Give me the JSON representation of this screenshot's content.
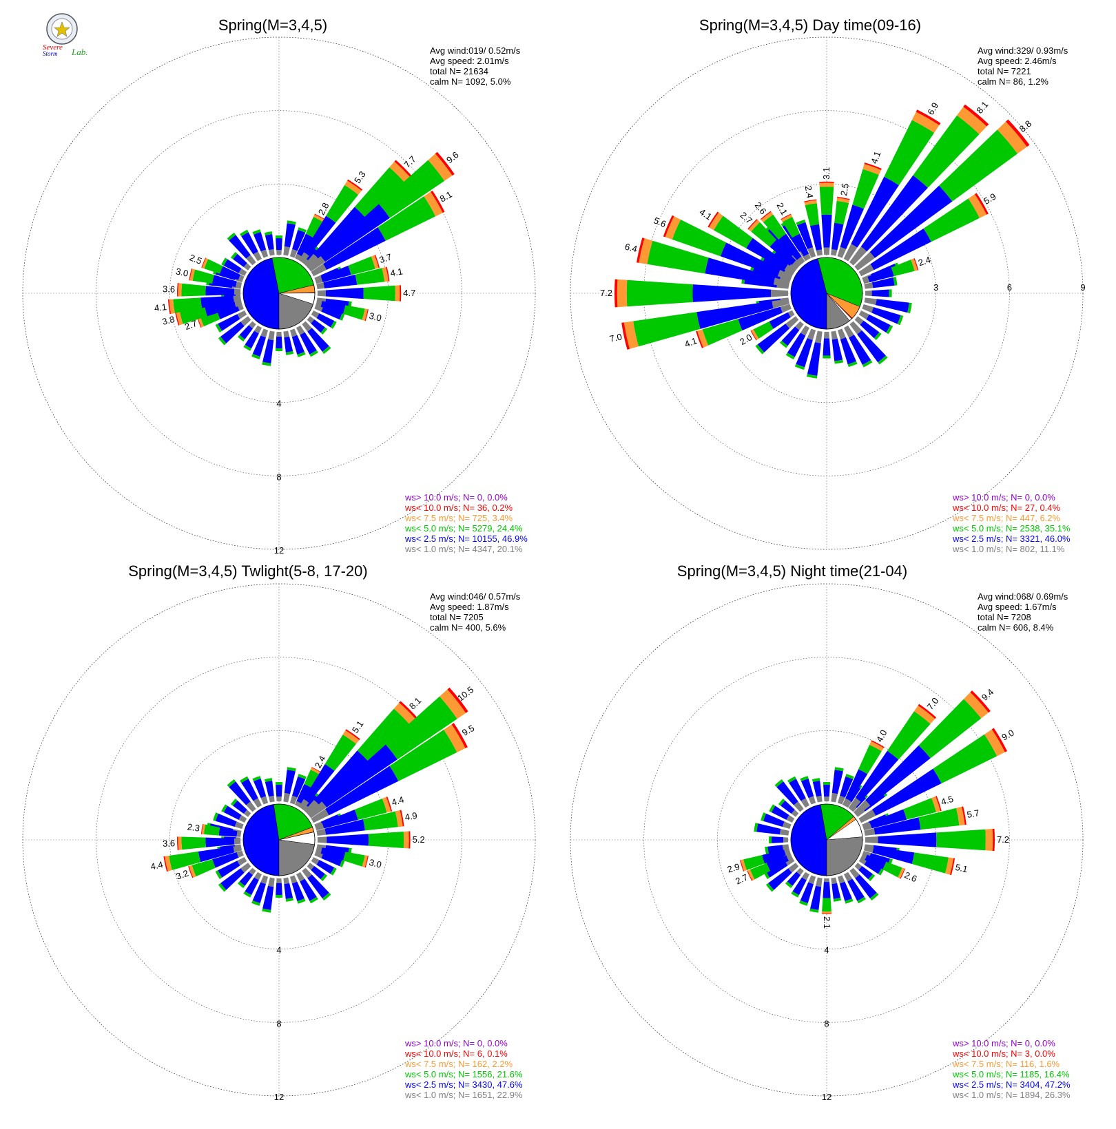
{
  "logo": {
    "line1": "Severe",
    "line2": "Storm",
    "line3": "Lab."
  },
  "colors": {
    "gt10": "#9400d3",
    "lt10": "#ff0000",
    "lt75": "#ff9933",
    "lt5": "#00c800",
    "lt25": "#0000ff",
    "lt1": "#808080",
    "calm": "#ffffff"
  },
  "chart_data": [
    {
      "type": "windrose",
      "title": "Spring(M=3,4,5)",
      "info": [
        "Avg wind:019/ 0.52m/s",
        "Avg speed: 2.01m/s",
        "total N=      21634",
        "calm N=   1092,   5.0%"
      ],
      "ring_labels": [
        "4",
        "8",
        "12"
      ],
      "rmax": 12,
      "pie": {
        "lt1": 20.1,
        "lt25": 46.9,
        "lt5": 24.4,
        "lt75": 3.4,
        "lt10": 0.2,
        "gt10": 0.0,
        "calm": 5.0
      },
      "bars": [
        {
          "dir": 28,
          "len": 2.8,
          "label": "2.8"
        },
        {
          "dir": 35,
          "len": 5.3,
          "label": "5.3"
        },
        {
          "dir": 45,
          "len": 7.7,
          "label": "7.7"
        },
        {
          "dir": 52,
          "len": 9.6,
          "label": "9.6"
        },
        {
          "dir": 60,
          "len": 8.1,
          "label": "8.1"
        },
        {
          "dir": 72,
          "len": 3.7,
          "label": "3.7"
        },
        {
          "dir": 80,
          "len": 4.1,
          "label": "4.1"
        },
        {
          "dir": 90,
          "len": 4.7,
          "label": "4.7"
        },
        {
          "dir": 104,
          "len": 3.0,
          "label": "3.0"
        },
        {
          "dir": 250,
          "len": 2.7,
          "label": "2.7"
        },
        {
          "dir": 256,
          "len": 3.8,
          "label": "3.8"
        },
        {
          "dir": 263,
          "len": 4.1,
          "label": "4.1"
        },
        {
          "dir": 272,
          "len": 3.6,
          "label": "3.6"
        },
        {
          "dir": 282,
          "len": 3.0,
          "label": "3.0"
        },
        {
          "dir": 292,
          "len": 2.5,
          "label": "2.5"
        }
      ],
      "legend": [
        {
          "key": "gt10",
          "text": "ws> 10.0 m/s; N=     0,  0.0%"
        },
        {
          "key": "lt10",
          "text": "ws< 10.0 m/s; N=    36,  0.2%"
        },
        {
          "key": "lt75",
          "text": "ws<  7.5 m/s; N=   725,  3.4%"
        },
        {
          "key": "lt5",
          "text": "ws<  5.0 m/s; N=  5279, 24.4%"
        },
        {
          "key": "lt25",
          "text": "ws<  2.5 m/s; N= 10155, 46.9%"
        },
        {
          "key": "lt1",
          "text": "ws<  1.0 m/s; N=  4347, 20.1%"
        }
      ]
    },
    {
      "type": "windrose",
      "title": "Spring(M=3,4,5) Day time(09-16)",
      "info": [
        "Avg wind:329/ 0.93m/s",
        "Avg speed: 2.46m/s",
        "total N=        7221",
        "calm N=     86,   1.2%"
      ],
      "ring_labels": [
        "3",
        "6",
        "9"
      ],
      "rmax": 9,
      "pie": {
        "lt1": 11.1,
        "lt25": 46.0,
        "lt5": 35.1,
        "lt75": 6.2,
        "lt10": 0.4,
        "gt10": 0.0,
        "calm": 1.2
      },
      "bars": [
        {
          "dir": 0,
          "len": 3.1,
          "label": "3.1"
        },
        {
          "dir": 10,
          "len": 2.5,
          "label": "2.5"
        },
        {
          "dir": 20,
          "len": 4.1,
          "label": "4.1"
        },
        {
          "dir": 30,
          "len": 6.9,
          "label": "6.9"
        },
        {
          "dir": 40,
          "len": 8.1,
          "label": "8.1"
        },
        {
          "dir": 50,
          "len": 8.8,
          "label": "8.8"
        },
        {
          "dir": 60,
          "len": 5.9,
          "label": "5.9"
        },
        {
          "dir": 72,
          "len": 2.4,
          "label": "2.4"
        },
        {
          "dir": 240,
          "len": 2.0,
          "label": "2.0"
        },
        {
          "dir": 250,
          "len": 4.1,
          "label": "4.1"
        },
        {
          "dir": 258,
          "len": 7.0,
          "label": "7.0"
        },
        {
          "dir": 270,
          "len": 7.2,
          "label": "7.2"
        },
        {
          "dir": 283,
          "len": 6.4,
          "label": "6.4"
        },
        {
          "dir": 293,
          "len": 5.6,
          "label": "5.6"
        },
        {
          "dir": 303,
          "len": 4.1,
          "label": "4.1"
        },
        {
          "dir": 313,
          "len": 2.7,
          "label": "2.7"
        },
        {
          "dir": 322,
          "len": 2.6,
          "label": "2.6"
        },
        {
          "dir": 332,
          "len": 2.1,
          "label": "2.1"
        },
        {
          "dir": 350,
          "len": 2.4,
          "label": "2.4"
        }
      ],
      "legend": [
        {
          "key": "gt10",
          "text": "ws> 10.0 m/s; N=     0,  0.0%"
        },
        {
          "key": "lt10",
          "text": "ws< 10.0 m/s; N=    27,  0.4%"
        },
        {
          "key": "lt75",
          "text": "ws<  7.5 m/s; N=   447,  6.2%"
        },
        {
          "key": "lt5",
          "text": "ws<  5.0 m/s; N=  2538, 35.1%"
        },
        {
          "key": "lt25",
          "text": "ws<  2.5 m/s; N=  3321, 46.0%"
        },
        {
          "key": "lt1",
          "text": "ws<  1.0 m/s; N=   802, 11.1%"
        }
      ]
    },
    {
      "type": "windrose",
      "title": "Spring(M=3,4,5) Twlight(5-8, 17-20)",
      "info": [
        "Avg wind:046/ 0.57m/s",
        "Avg speed: 1.87m/s",
        "total N=        7205",
        "calm N=    400,   5.6%"
      ],
      "ring_labels": [
        "4",
        "8",
        "12"
      ],
      "rmax": 12,
      "pie": {
        "lt1": 22.9,
        "lt25": 47.6,
        "lt5": 21.6,
        "lt75": 2.2,
        "lt10": 0.1,
        "gt10": 0.0,
        "calm": 5.6
      },
      "bars": [
        {
          "dir": 28,
          "len": 2.4,
          "label": "2.4"
        },
        {
          "dir": 35,
          "len": 5.1,
          "label": "5.1"
        },
        {
          "dir": 45,
          "len": 8.1,
          "label": "8.1"
        },
        {
          "dir": 52,
          "len": 10.5,
          "label": "10.5"
        },
        {
          "dir": 60,
          "len": 9.5,
          "label": "9.5"
        },
        {
          "dir": 72,
          "len": 4.4,
          "label": "4.4"
        },
        {
          "dir": 80,
          "len": 4.9,
          "label": "4.9"
        },
        {
          "dir": 90,
          "len": 5.2,
          "label": "5.2"
        },
        {
          "dir": 104,
          "len": 3.0,
          "label": "3.0"
        },
        {
          "dir": 250,
          "len": 3.2,
          "label": "3.2"
        },
        {
          "dir": 258,
          "len": 4.4,
          "label": "4.4"
        },
        {
          "dir": 268,
          "len": 3.6,
          "label": "3.6"
        },
        {
          "dir": 278,
          "len": 2.3,
          "label": "2.3"
        }
      ],
      "legend": [
        {
          "key": "gt10",
          "text": "ws> 10.0 m/s; N=     0,  0.0%"
        },
        {
          "key": "lt10",
          "text": "ws< 10.0 m/s; N=     6,  0.1%"
        },
        {
          "key": "lt75",
          "text": "ws<  7.5 m/s; N=   162,  2.2%"
        },
        {
          "key": "lt5",
          "text": "ws<  5.0 m/s; N=  1556, 21.6%"
        },
        {
          "key": "lt25",
          "text": "ws<  2.5 m/s; N=  3430, 47.6%"
        },
        {
          "key": "lt1",
          "text": "ws<  1.0 m/s; N=  1651, 22.9%"
        }
      ]
    },
    {
      "type": "windrose",
      "title": "Spring(M=3,4,5) Night time(21-04)",
      "info": [
        "Avg wind:068/ 0.69m/s",
        "Avg speed: 1.67m/s",
        "total N=        7208",
        "calm N=    606,   8.4%"
      ],
      "ring_labels": [
        "4",
        "8",
        "12"
      ],
      "rmax": 12,
      "pie": {
        "lt1": 26.3,
        "lt25": 47.2,
        "lt5": 16.4,
        "lt75": 1.6,
        "lt10": 0.0,
        "gt10": 0.0,
        "calm": 8.4
      },
      "bars": [
        {
          "dir": 28,
          "len": 4.0,
          "label": "4.0"
        },
        {
          "dir": 38,
          "len": 7.0,
          "label": "7.0"
        },
        {
          "dir": 48,
          "len": 9.4,
          "label": "9.4"
        },
        {
          "dir": 60,
          "len": 9.0,
          "label": "9.0"
        },
        {
          "dir": 72,
          "len": 4.5,
          "label": "4.5"
        },
        {
          "dir": 80,
          "len": 5.7,
          "label": "5.7"
        },
        {
          "dir": 90,
          "len": 7.2,
          "label": "7.2"
        },
        {
          "dir": 102,
          "len": 5.1,
          "label": "5.1"
        },
        {
          "dir": 114,
          "len": 2.6,
          "label": "2.6"
        },
        {
          "dir": 180,
          "len": 2.1,
          "label": "2.1"
        },
        {
          "dir": 245,
          "len": 2.7,
          "label": "2.7"
        },
        {
          "dir": 253,
          "len": 2.9,
          "label": "2.9"
        }
      ],
      "legend": [
        {
          "key": "gt10",
          "text": "ws> 10.0 m/s; N=     0,  0.0%"
        },
        {
          "key": "lt10",
          "text": "ws< 10.0 m/s; N=     3,  0.0%"
        },
        {
          "key": "lt75",
          "text": "ws<  7.5 m/s; N=   116,  1.6%"
        },
        {
          "key": "lt5",
          "text": "ws<  5.0 m/s; N=  1185, 16.4%"
        },
        {
          "key": "lt25",
          "text": "ws<  2.5 m/s; N=  3404, 47.2%"
        },
        {
          "key": "lt1",
          "text": "ws<  1.0 m/s; N=  1894, 26.3%"
        }
      ]
    }
  ]
}
